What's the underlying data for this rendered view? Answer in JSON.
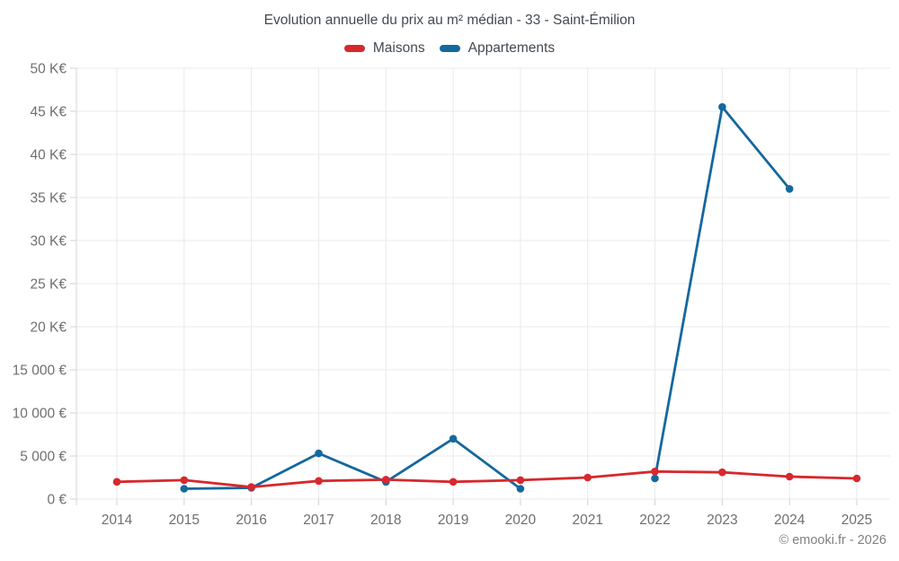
{
  "header": {
    "title": "Evolution annuelle du prix au m² médian - 33 - Saint-Émilion"
  },
  "legend": {
    "items": [
      {
        "label": "Maisons",
        "color": "#d7282d"
      },
      {
        "label": "Appartements",
        "color": "#15689e"
      }
    ]
  },
  "footer": {
    "credit": "© emooki.fr - 2026"
  },
  "colors": {
    "maisons_red": "#d7282d",
    "appartements_blue": "#15689e",
    "gridline": "#e9e9e9",
    "axis_line": "#dcdcdc",
    "tick_mark": "#d0d0d0",
    "axis_label_text": "#6f6f6f",
    "title_text": "#414a52",
    "footer_text": "#818181"
  },
  "chart_data": {
    "type": "line",
    "title": "Evolution annuelle du prix au m² médian - 33 - Saint-Émilion",
    "categories": [
      "2014",
      "2015",
      "2016",
      "2017",
      "2018",
      "2019",
      "2020",
      "2021",
      "2022",
      "2023",
      "2024",
      "2025"
    ],
    "series": [
      {
        "name": "Maisons",
        "color": "#d7282d",
        "values": [
          2000,
          2200,
          1400,
          2100,
          2250,
          2000,
          2200,
          2500,
          3200,
          3100,
          2600,
          2400
        ]
      },
      {
        "name": "Appartements",
        "color": "#15689e",
        "values": [
          null,
          1200,
          1300,
          5300,
          2000,
          7000,
          1200,
          null,
          2400,
          45500,
          36000,
          null
        ]
      }
    ],
    "ylim": [
      0,
      50000
    ],
    "y_ticks": [
      {
        "value": 0,
        "label": "0 €"
      },
      {
        "value": 5000,
        "label": "5 000 €"
      },
      {
        "value": 10000,
        "label": "10 000 €"
      },
      {
        "value": 15000,
        "label": "15 000 €"
      },
      {
        "value": 20000,
        "label": "20 K€"
      },
      {
        "value": 25000,
        "label": "25 K€"
      },
      {
        "value": 30000,
        "label": "30 K€"
      },
      {
        "value": 35000,
        "label": "35 K€"
      },
      {
        "value": 40000,
        "label": "40 K€"
      },
      {
        "value": 45000,
        "label": "45 K€"
      },
      {
        "value": 50000,
        "label": "50 K€"
      }
    ],
    "grid": true,
    "legend_position": "top",
    "xlabel": "",
    "ylabel": ""
  }
}
